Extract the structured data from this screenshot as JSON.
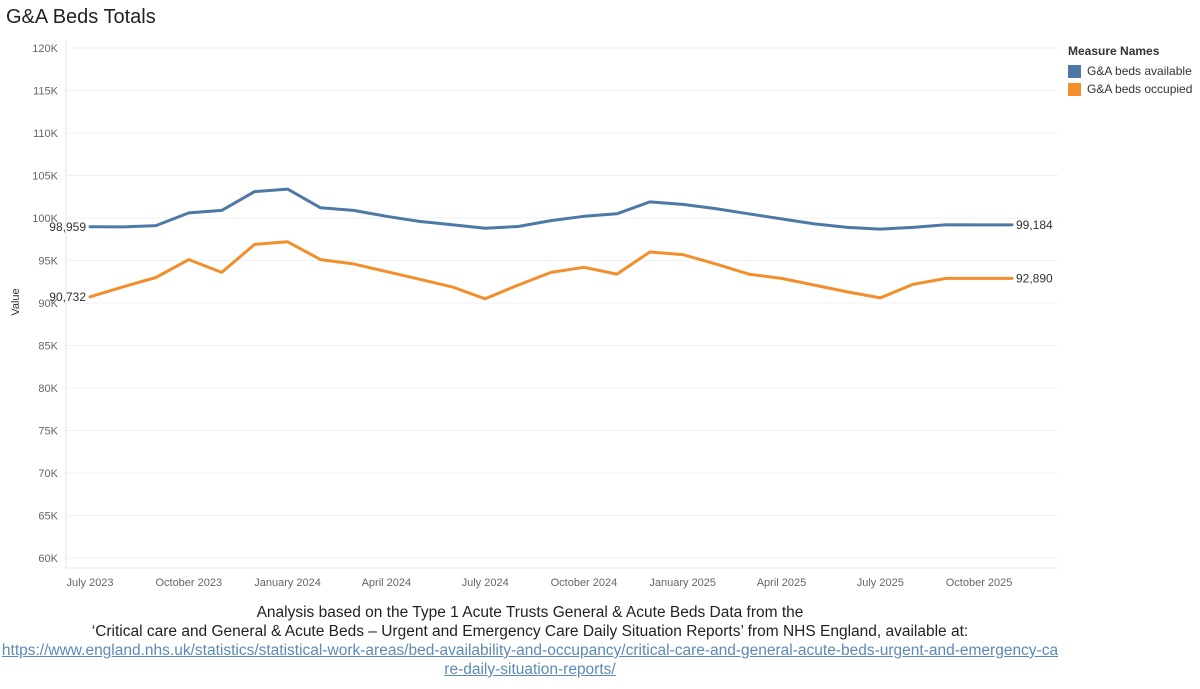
{
  "title": "G&A Beds Totals",
  "legend": {
    "title": "Measure Names",
    "items": [
      {
        "label": "G&A beds available",
        "color": "#4e79a7"
      },
      {
        "label": "G&A beds occupied",
        "color": "#f28e2b"
      }
    ]
  },
  "footer": {
    "line1": "Analysis based on the Type 1 Acute Trusts General & Acute Beds Data from the",
    "line2": "‘Critical care and General & Acute Beds – Urgent and Emergency Care Daily Situation Reports’ from NHS England, available at:",
    "url": "https://www.england.nhs.uk/statistics/statistical-work-areas/bed-availability-and-occupancy/critical-care-and-general-acute-beds-urgent-and-emergency-care-daily-situation-reports/"
  },
  "chart_data": {
    "type": "line",
    "title": "G&A Beds Totals",
    "xlabel": "",
    "ylabel": "Value",
    "ylim": [
      60000,
      120000
    ],
    "yticks": [
      60000,
      65000,
      70000,
      75000,
      80000,
      85000,
      90000,
      95000,
      100000,
      105000,
      110000,
      115000,
      120000
    ],
    "ytick_labels": [
      "60K",
      "65K",
      "70K",
      "75K",
      "80K",
      "85K",
      "90K",
      "95K",
      "100K",
      "105K",
      "110K",
      "115K",
      "120K"
    ],
    "x": [
      "2023-07",
      "2023-08",
      "2023-09",
      "2023-10",
      "2023-11",
      "2023-12",
      "2024-01",
      "2024-02",
      "2024-03",
      "2024-04",
      "2024-05",
      "2024-06",
      "2024-07",
      "2024-08",
      "2024-09",
      "2024-10",
      "2024-11",
      "2024-12",
      "2025-01",
      "2025-02",
      "2025-03",
      "2025-04",
      "2025-05",
      "2025-06",
      "2025-07",
      "2025-08",
      "2025-09",
      "2025-10",
      "2025-11"
    ],
    "xticks": [
      {
        "index": 0,
        "label": "July 2023"
      },
      {
        "index": 3,
        "label": "October 2023"
      },
      {
        "index": 6,
        "label": "January 2024"
      },
      {
        "index": 9,
        "label": "April 2024"
      },
      {
        "index": 12,
        "label": "July 2024"
      },
      {
        "index": 15,
        "label": "October 2024"
      },
      {
        "index": 18,
        "label": "January 2025"
      },
      {
        "index": 21,
        "label": "April 2025"
      },
      {
        "index": 24,
        "label": "July 2025"
      },
      {
        "index": 27,
        "label": "October 2025"
      }
    ],
    "series": [
      {
        "name": "G&A beds available",
        "color": "#4e79a7",
        "values": [
          98959,
          98950,
          99100,
          100600,
          100900,
          103100,
          103400,
          101200,
          100900,
          100200,
          99600,
          99200,
          98800,
          99000,
          99700,
          100200,
          100500,
          101900,
          101600,
          101100,
          100500,
          99900,
          99300,
          98900,
          98700,
          98900,
          99200,
          99184,
          99184
        ],
        "start_label": "98,959",
        "end_label": "99,184"
      },
      {
        "name": "G&A beds occupied",
        "color": "#f28e2b",
        "values": [
          90732,
          91900,
          93000,
          95100,
          93600,
          96900,
          97200,
          95100,
          94600,
          93700,
          92800,
          91900,
          90500,
          92100,
          93600,
          94200,
          93400,
          96000,
          95700,
          94600,
          93400,
          92900,
          92100,
          91300,
          90600,
          92200,
          92890,
          92890,
          92890
        ],
        "start_label": "90,732",
        "end_label": "92,890"
      }
    ]
  }
}
